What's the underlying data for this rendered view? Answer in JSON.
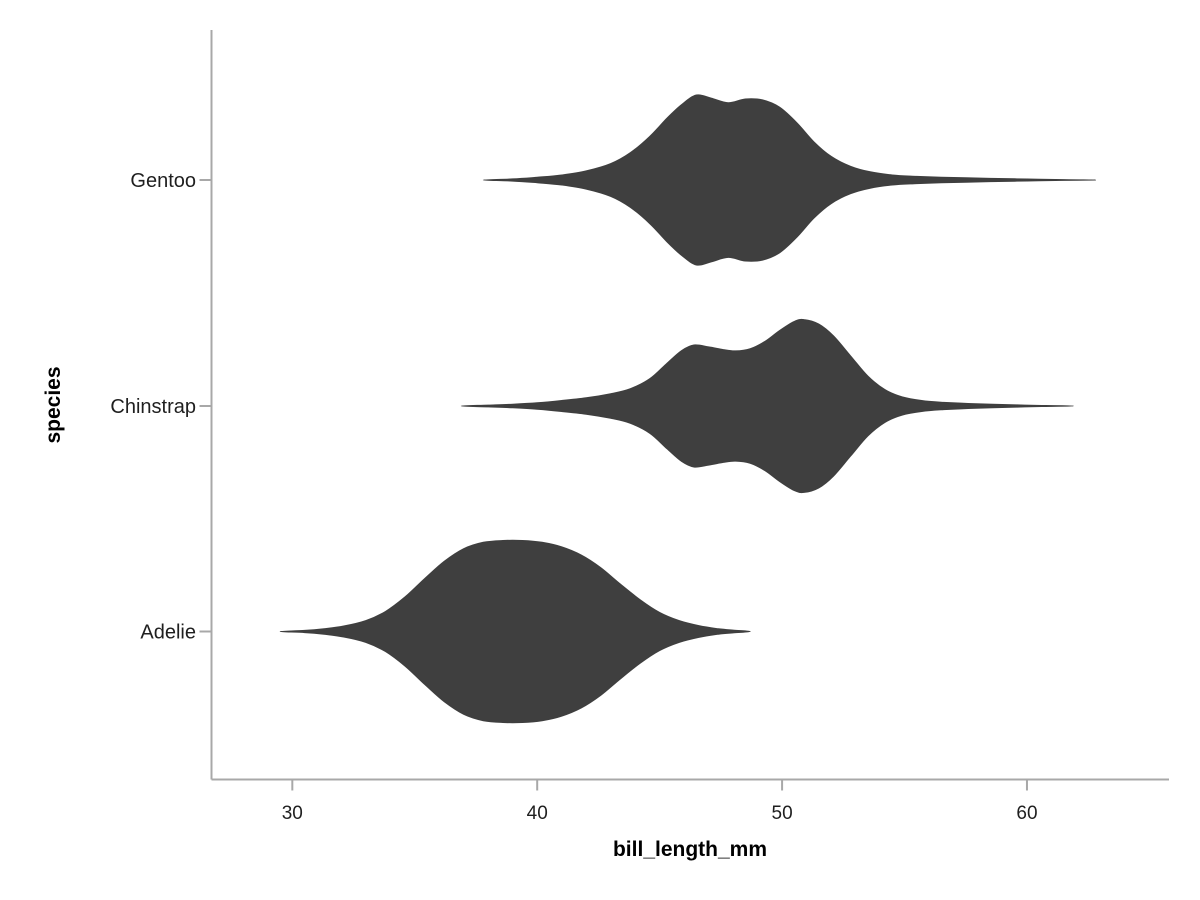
{
  "figure": {
    "background": "#ffffff"
  },
  "chart_data": {
    "type": "violin",
    "orientation": "horizontal",
    "title": "",
    "xlabel": "bill_length_mm",
    "ylabel": "species",
    "categories": [
      "Gentoo",
      "Chinstrap",
      "Adelie"
    ],
    "x_ticks": [
      "30",
      "40",
      "50",
      "60"
    ],
    "x_tick_values": [
      30,
      40,
      50,
      60
    ],
    "xlim": [
      26.7,
      65.8
    ],
    "grid": false,
    "legend": "none",
    "colors": {
      "violin_fill": "#3f3f3f",
      "axis_line": "#a8a8a8",
      "tick_label": "#1f1f1f",
      "axis_title": "#000000"
    },
    "series": [
      {
        "name": "Gentoo",
        "kde_profile": [
          [
            37.8,
            0
          ],
          [
            39.0,
            0.012
          ],
          [
            40.0,
            0.03
          ],
          [
            41.0,
            0.055
          ],
          [
            42.0,
            0.1
          ],
          [
            43.0,
            0.18
          ],
          [
            43.8,
            0.3
          ],
          [
            44.6,
            0.48
          ],
          [
            45.3,
            0.68
          ],
          [
            45.9,
            0.83
          ],
          [
            46.5,
            0.934
          ],
          [
            47.1,
            0.9
          ],
          [
            47.8,
            0.85
          ],
          [
            48.5,
            0.89
          ],
          [
            49.2,
            0.88
          ],
          [
            49.9,
            0.8
          ],
          [
            50.6,
            0.63
          ],
          [
            51.3,
            0.42
          ],
          [
            52.0,
            0.26
          ],
          [
            52.8,
            0.15
          ],
          [
            53.6,
            0.09
          ],
          [
            54.5,
            0.055
          ],
          [
            55.5,
            0.04
          ],
          [
            56.5,
            0.03
          ],
          [
            57.5,
            0.024
          ],
          [
            58.5,
            0.018
          ],
          [
            59.5,
            0.013
          ],
          [
            60.5,
            0.008
          ],
          [
            61.5,
            0.004
          ],
          [
            62.8,
            0
          ]
        ]
      },
      {
        "name": "Chinstrap",
        "kde_profile": [
          [
            36.9,
            0
          ],
          [
            38.0,
            0.01
          ],
          [
            39.0,
            0.02
          ],
          [
            40.0,
            0.035
          ],
          [
            41.0,
            0.06
          ],
          [
            42.0,
            0.09
          ],
          [
            43.0,
            0.135
          ],
          [
            43.8,
            0.19
          ],
          [
            44.6,
            0.3
          ],
          [
            45.3,
            0.47
          ],
          [
            45.9,
            0.61
          ],
          [
            46.4,
            0.67
          ],
          [
            47.0,
            0.65
          ],
          [
            47.6,
            0.62
          ],
          [
            48.1,
            0.605
          ],
          [
            48.7,
            0.63
          ],
          [
            49.3,
            0.71
          ],
          [
            49.9,
            0.83
          ],
          [
            50.5,
            0.93
          ],
          [
            50.9,
            0.95
          ],
          [
            51.5,
            0.9
          ],
          [
            52.1,
            0.77
          ],
          [
            52.8,
            0.55
          ],
          [
            53.5,
            0.33
          ],
          [
            54.2,
            0.18
          ],
          [
            54.9,
            0.1
          ],
          [
            55.7,
            0.06
          ],
          [
            56.6,
            0.04
          ],
          [
            57.6,
            0.028
          ],
          [
            58.6,
            0.02
          ],
          [
            59.6,
            0.012
          ],
          [
            60.6,
            0.006
          ],
          [
            61.9,
            0
          ]
        ]
      },
      {
        "name": "Adelie",
        "kde_profile": [
          [
            29.5,
            0
          ],
          [
            30.5,
            0.012
          ],
          [
            31.3,
            0.03
          ],
          [
            32.1,
            0.06
          ],
          [
            33.0,
            0.12
          ],
          [
            33.8,
            0.22
          ],
          [
            34.6,
            0.38
          ],
          [
            35.4,
            0.58
          ],
          [
            36.2,
            0.77
          ],
          [
            37.0,
            0.91
          ],
          [
            37.8,
            0.98
          ],
          [
            38.6,
            1.0
          ],
          [
            39.4,
            1.0
          ],
          [
            40.2,
            0.98
          ],
          [
            41.0,
            0.93
          ],
          [
            41.8,
            0.84
          ],
          [
            42.6,
            0.7
          ],
          [
            43.4,
            0.52
          ],
          [
            44.2,
            0.35
          ],
          [
            45.0,
            0.21
          ],
          [
            45.8,
            0.12
          ],
          [
            46.6,
            0.065
          ],
          [
            47.4,
            0.03
          ],
          [
            48.0,
            0.015
          ],
          [
            48.7,
            0
          ]
        ]
      }
    ]
  }
}
